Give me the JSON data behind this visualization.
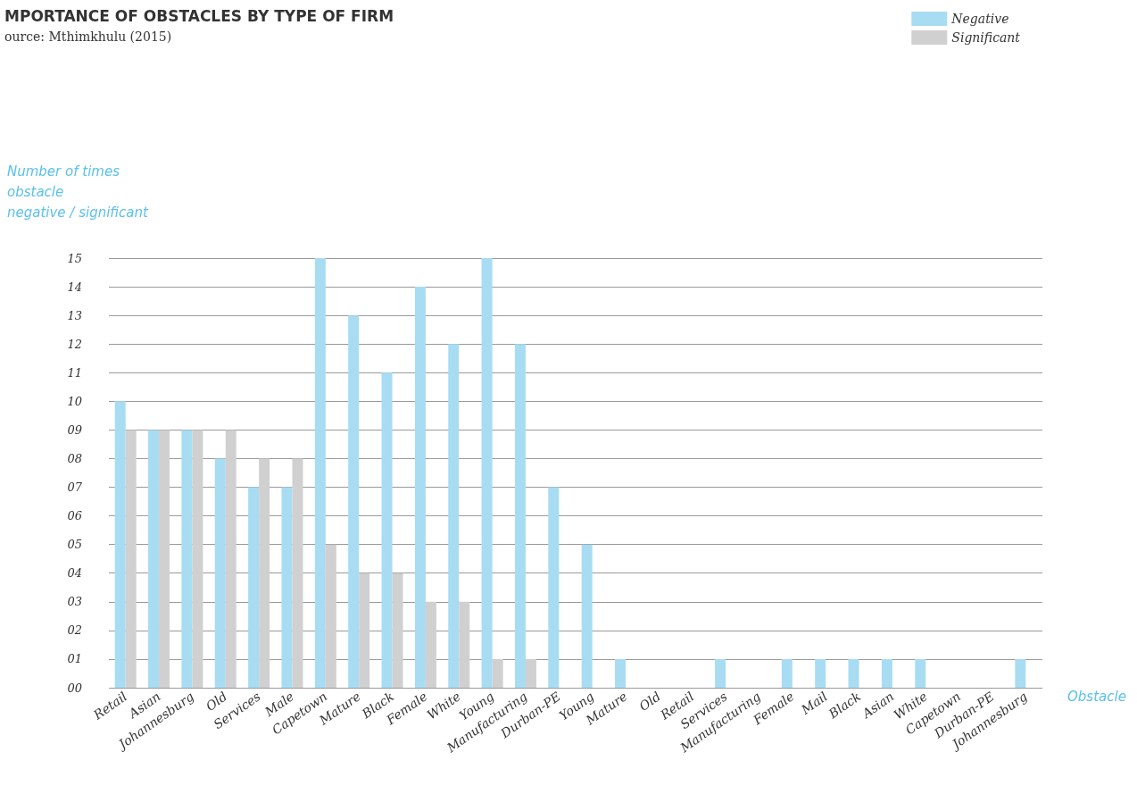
{
  "chart_data": {
    "type": "bar",
    "title": "MPORTANCE OF OBSTACLES BY TYPE OF FIRM",
    "subtitle": "ource: Mthimkhulu (2015)",
    "xlabel": "Obstacle",
    "ylabel": "Number of times\nobstacle\nnegative / significant",
    "categories": [
      "Retail",
      "Asian",
      "Johannesburg",
      "Old",
      "Services",
      "Male",
      "Capetown",
      "Mature",
      "Black",
      "Female",
      "White",
      "Young",
      "Manufacturing",
      "Durban-PE",
      "Young",
      "Mature",
      "Old",
      "Retail",
      "Services",
      "Manufacturing",
      "Female",
      "Mail",
      "Black",
      "Asian",
      "White",
      "Capetown",
      "Durban-PE",
      "Johannesburg"
    ],
    "series": [
      {
        "name": "Negative",
        "color": "#a8dcf3",
        "values": [
          10,
          9,
          9,
          8,
          7,
          7,
          15,
          13,
          11,
          14,
          12,
          15,
          12,
          7,
          5,
          1,
          0,
          0,
          1,
          0,
          1,
          1,
          1,
          1,
          1,
          0,
          0,
          1
        ]
      },
      {
        "name": "Significant",
        "color": "#d0d0d0",
        "values": [
          9,
          9,
          9,
          9,
          8,
          8,
          5,
          4,
          4,
          3,
          3,
          1,
          1,
          0,
          0,
          0,
          0,
          0,
          0,
          0,
          0,
          0,
          0,
          0,
          0,
          0,
          0,
          0
        ]
      }
    ],
    "ylim": [
      0,
      15
    ],
    "yticks": [
      {
        "value": 0,
        "label": "00"
      },
      {
        "value": 1,
        "label": "01"
      },
      {
        "value": 2,
        "label": "02"
      },
      {
        "value": 3,
        "label": "03"
      },
      {
        "value": 4,
        "label": "04"
      },
      {
        "value": 5,
        "label": "05"
      },
      {
        "value": 6,
        "label": "06"
      },
      {
        "value": 7,
        "label": "07"
      },
      {
        "value": 8,
        "label": "08"
      },
      {
        "value": 9,
        "label": "09"
      },
      10,
      11,
      12,
      13,
      14,
      15
    ],
    "grid": "y",
    "legend": "top right"
  }
}
